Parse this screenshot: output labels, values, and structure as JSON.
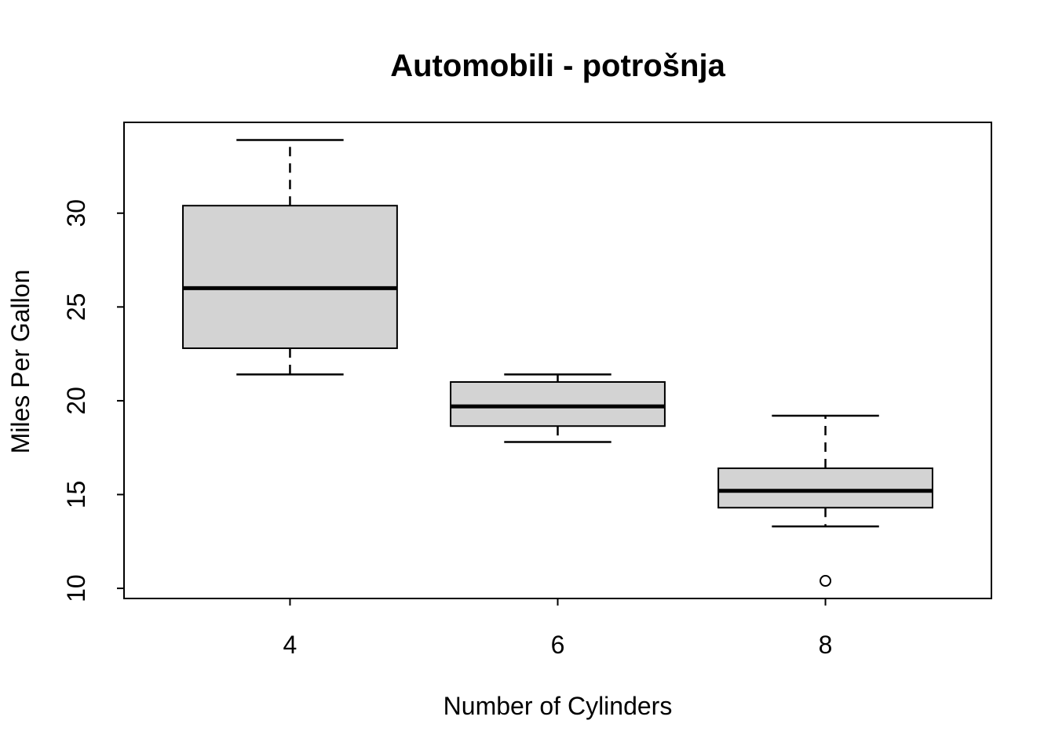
{
  "chart_data": {
    "type": "boxplot",
    "title": "Automobili - potrošnja",
    "xlabel": "Number of Cylinders",
    "ylabel": "Miles Per Gallon",
    "categories": [
      "4",
      "6",
      "8"
    ],
    "x_positions": [
      1,
      2,
      3
    ],
    "xlim": [
      0.38,
      3.62
    ],
    "ylim": [
      9.46,
      34.84
    ],
    "yticks": [
      10,
      15,
      20,
      25,
      30
    ],
    "box_width_units": 0.8,
    "cap_width_units": 0.4,
    "grid": false,
    "legend": "none",
    "groups": [
      {
        "label": "4",
        "x": 1,
        "whisker_low": 21.4,
        "q1": 22.8,
        "median": 26.0,
        "q3": 30.4,
        "whisker_high": 33.9,
        "outliers": []
      },
      {
        "label": "6",
        "x": 2,
        "whisker_low": 17.8,
        "q1": 18.65,
        "median": 19.7,
        "q3": 21.0,
        "whisker_high": 21.4,
        "outliers": []
      },
      {
        "label": "8",
        "x": 3,
        "whisker_low": 13.3,
        "q1": 14.3,
        "median": 15.2,
        "q3": 16.4,
        "whisker_high": 19.2,
        "outliers": [
          10.4
        ]
      }
    ],
    "colors": {
      "box_fill": "#d3d3d3",
      "stroke": "#000000",
      "background": "#ffffff"
    }
  }
}
